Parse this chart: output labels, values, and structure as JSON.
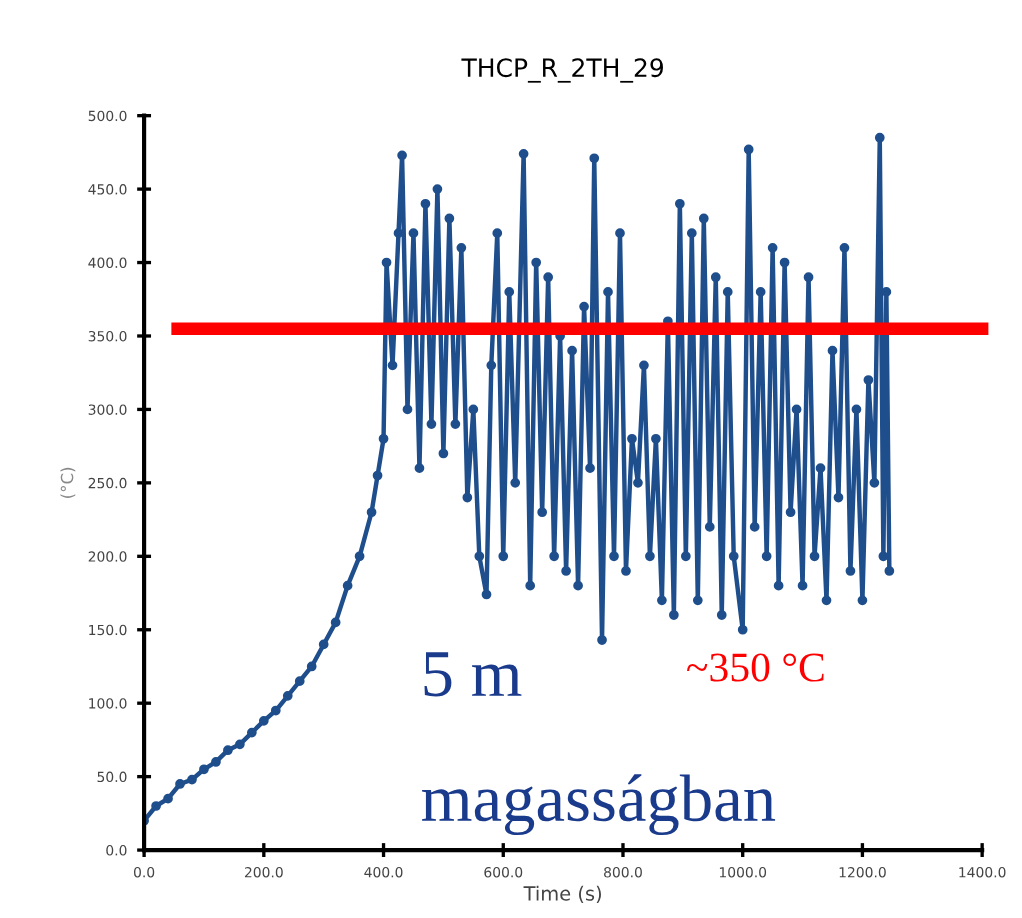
{
  "chart_data": {
    "type": "line",
    "title": "THCP_R_2TH_29",
    "xlabel": "Time (s)",
    "ylabel": "(°C)",
    "x": [
      0,
      20,
      40,
      60,
      80,
      100,
      120,
      140,
      160,
      180,
      200,
      220,
      240,
      260,
      280,
      300,
      320,
      340,
      360,
      380,
      390,
      400,
      405,
      415,
      425,
      431,
      440,
      450,
      460,
      470,
      480,
      490,
      500,
      510,
      520,
      530,
      540,
      550,
      560,
      572,
      580,
      590,
      600,
      610,
      620,
      634,
      645,
      655,
      665,
      675,
      685,
      695,
      705,
      715,
      725,
      735,
      745,
      752,
      765,
      775,
      785,
      795,
      805,
      815,
      825,
      835,
      845,
      855,
      865,
      875,
      885,
      895,
      905,
      915,
      925,
      935,
      945,
      955,
      965,
      975,
      985,
      1000,
      1010,
      1020,
      1030,
      1040,
      1050,
      1060,
      1070,
      1080,
      1090,
      1100,
      1110,
      1120,
      1130,
      1140,
      1150,
      1160,
      1170,
      1180,
      1190,
      1200,
      1210,
      1220,
      1229,
      1235,
      1240,
      1245
    ],
    "series": [
      {
        "color": "#1f4e8c",
        "values": [
          20,
          30,
          35,
          45,
          48,
          55,
          60,
          68,
          72,
          80,
          88,
          95,
          105,
          115,
          125,
          140,
          155,
          180,
          200,
          230,
          255,
          280,
          400,
          330,
          420,
          473,
          300,
          420,
          260,
          440,
          290,
          450,
          270,
          430,
          290,
          410,
          240,
          300,
          200,
          174,
          330,
          420,
          200,
          380,
          250,
          474,
          180,
          400,
          230,
          390,
          200,
          350,
          190,
          340,
          180,
          370,
          260,
          471,
          143,
          380,
          200,
          420,
          190,
          280,
          250,
          330,
          200,
          280,
          170,
          360,
          160,
          440,
          200,
          420,
          170,
          430,
          220,
          390,
          160,
          380,
          200,
          150,
          477,
          220,
          380,
          200,
          410,
          180,
          400,
          230,
          300,
          180,
          390,
          200,
          260,
          170,
          340,
          240,
          410,
          190,
          300,
          170,
          320,
          250,
          485,
          200,
          380,
          190
        ]
      }
    ],
    "xlim": [
      0,
      1400
    ],
    "xticks": [
      {
        "value": 0,
        "label": "0.0"
      },
      {
        "value": 200,
        "label": "200.0"
      },
      {
        "value": 400,
        "label": "400.0"
      },
      {
        "value": 600,
        "label": "600.0"
      },
      {
        "value": 800,
        "label": "800.0"
      },
      {
        "value": 1000,
        "label": "1000.0"
      },
      {
        "value": 1200,
        "label": "1200.0"
      },
      {
        "value": 1400,
        "label": "1400.0"
      }
    ],
    "ylim": [
      0,
      500
    ],
    "yticks": [
      {
        "value": 0,
        "label": "0.0"
      },
      {
        "value": 50,
        "label": "50.0"
      },
      {
        "value": 100,
        "label": "100.0"
      },
      {
        "value": 150,
        "label": "150.0"
      },
      {
        "value": 200,
        "label": "200.0"
      },
      {
        "value": 250,
        "label": "250.0"
      },
      {
        "value": 300,
        "label": "300.0"
      },
      {
        "value": 350,
        "label": "350.0"
      },
      {
        "value": 400,
        "label": "400.0"
      },
      {
        "value": 450,
        "label": "450.0"
      },
      {
        "value": 500,
        "label": "500.0"
      }
    ],
    "ref_lines": [
      {
        "axis": "y",
        "value": 355,
        "label": "~350 °C",
        "color": "#ff0000"
      }
    ],
    "annotations": [
      "5 m",
      "magasságban"
    ],
    "marker": "circle",
    "line_style": "solid",
    "grid": false,
    "legend": false
  }
}
